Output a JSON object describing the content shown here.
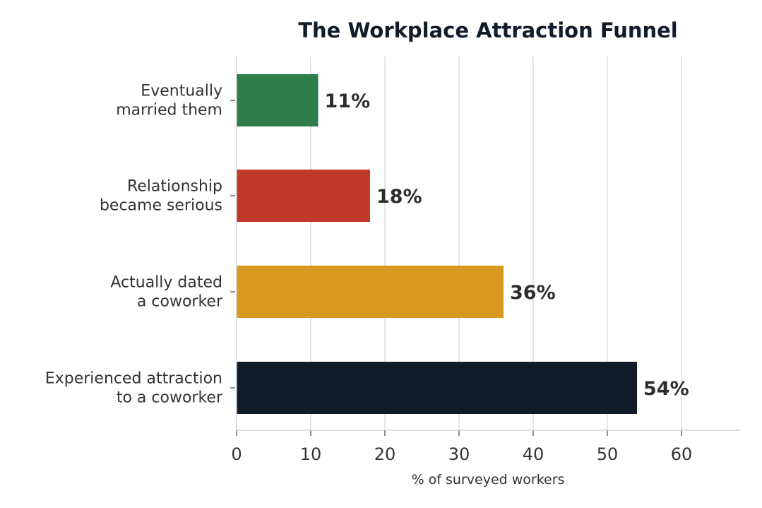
{
  "chart_data": {
    "type": "bar",
    "orientation": "horizontal",
    "title": "The Workplace Attraction Funnel",
    "xlabel": "% of surveyed workers",
    "ylabel": "",
    "xlim": [
      0,
      68
    ],
    "xticks": [
      0,
      10,
      20,
      30,
      40,
      50,
      60
    ],
    "grid": "vertical",
    "categories": [
      "Experienced attraction\nto a coworker",
      "Actually dated\na coworker",
      "Relationship\nbecame serious",
      "Eventually\nmarried them"
    ],
    "values": [
      54,
      36,
      18,
      11
    ],
    "data_labels": [
      "54%",
      "36%",
      "18%",
      "11%"
    ],
    "colors": [
      "#111c2b",
      "#d89a1e",
      "#c0392b",
      "#2e7d4a"
    ]
  }
}
